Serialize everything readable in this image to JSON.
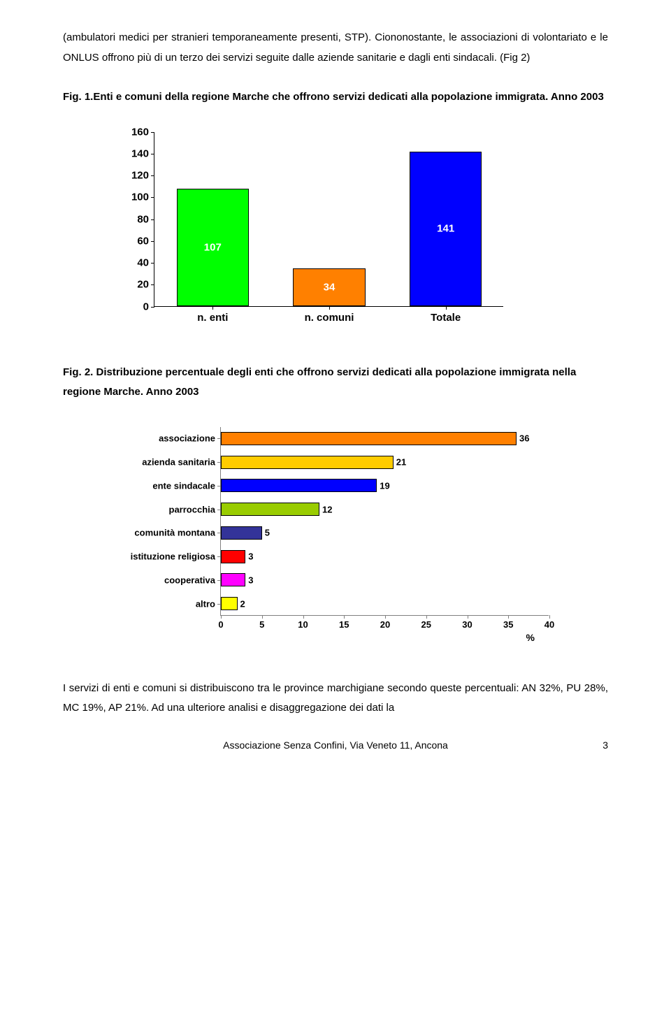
{
  "para1": "(ambulatori medici per stranieri temporaneamente presenti, STP). Ciononostante, le associazioni di volontariato e le ONLUS offrono più di un terzo dei servizi seguite dalle aziende sanitarie e dagli enti sindacali. (Fig 2)",
  "fig1_caption": "Fig. 1.Enti e comuni della regione Marche che offrono servizi dedicati alla popolazione immigrata. Anno 2003",
  "fig2_caption": "Fig. 2. Distribuzione percentuale degli enti che offrono servizi dedicati alla popolazione immigrata nella regione Marche. Anno 2003",
  "para2": "I servizi di enti e comuni si distribuiscono tra le province marchigiane secondo queste percentuali: AN 32%, PU 28%, MC 19%, AP 21%. Ad una ulteriore analisi e disaggregazione dei dati la",
  "footer_text": "Associazione Senza Confini, Via Veneto 11, Ancona",
  "page_number": "3",
  "chart1": {
    "ymax": 160,
    "yticks": [
      "0",
      "20",
      "40",
      "60",
      "80",
      "100",
      "120",
      "140",
      "160"
    ],
    "bars": [
      {
        "label": "n. enti",
        "value": 107,
        "color": "#00ff00",
        "text_value": "107"
      },
      {
        "label": "n. comuni",
        "value": 34,
        "color": "#ff8000",
        "text_value": "34"
      },
      {
        "label": "Totale",
        "value": 141,
        "color": "#0000ff",
        "text_value": "141"
      }
    ]
  },
  "chart2": {
    "xmax": 40,
    "xticks": [
      "0",
      "5",
      "10",
      "15",
      "20",
      "25",
      "30",
      "35",
      "40"
    ],
    "xaxis_label": "%",
    "bars": [
      {
        "label": "associazione",
        "value": 36,
        "color": "#ff8000",
        "text_value": "36"
      },
      {
        "label": "azienda sanitaria",
        "value": 21,
        "color": "#ffcc00",
        "text_value": "21"
      },
      {
        "label": "ente sindacale",
        "value": 19,
        "color": "#0000ff",
        "text_value": "19"
      },
      {
        "label": "parrocchia",
        "value": 12,
        "color": "#99cc00",
        "text_value": "12"
      },
      {
        "label": "comunità montana",
        "value": 5,
        "color": "#333399",
        "text_value": "5"
      },
      {
        "label": "istituzione religiosa",
        "value": 3,
        "color": "#ff0000",
        "text_value": "3"
      },
      {
        "label": "cooperativa",
        "value": 3,
        "color": "#ff00ff",
        "text_value": "3"
      },
      {
        "label": "altro",
        "value": 2,
        "color": "#ffff00",
        "text_value": "2"
      }
    ]
  }
}
